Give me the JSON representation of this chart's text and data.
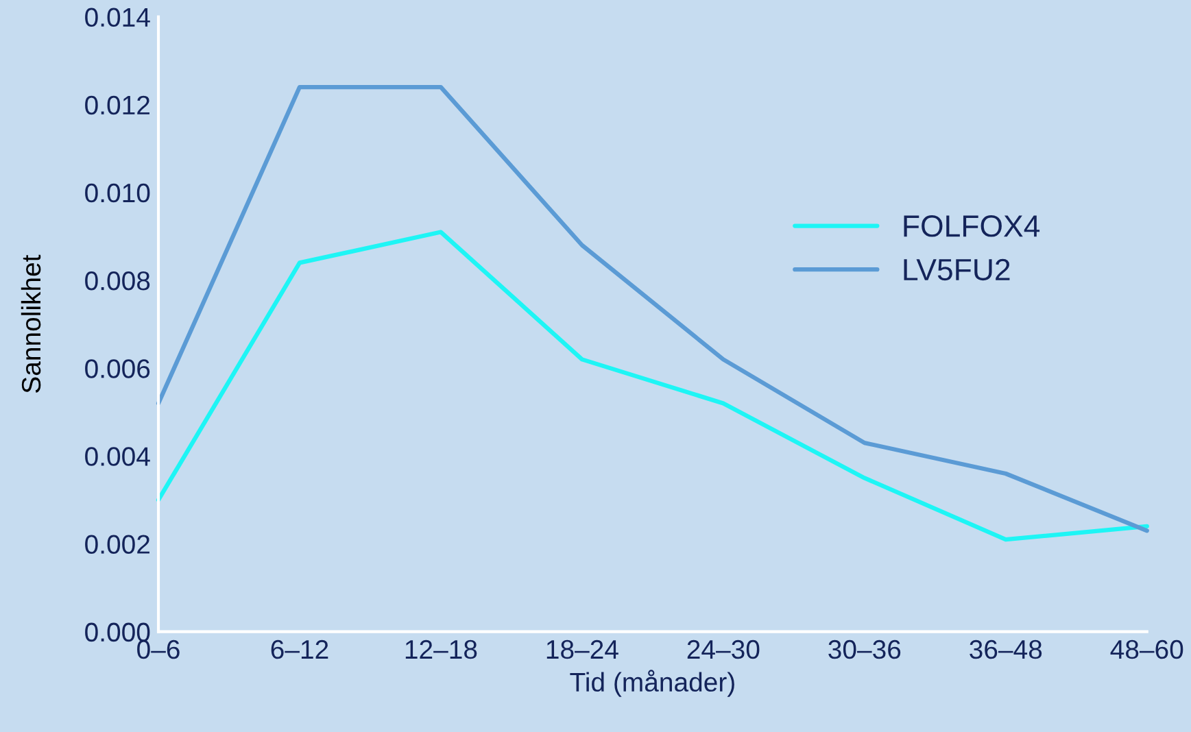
{
  "chart_data": {
    "type": "line",
    "xlabel": "Tid (månader)",
    "ylabel": "Sannolikhet",
    "categories": [
      "0–6",
      "6–12",
      "12–18",
      "18–24",
      "24–30",
      "30–36",
      "36–48",
      "48–60"
    ],
    "series": [
      {
        "name": "FOLFOX4",
        "color": "#1ef5f5",
        "values": [
          0.003,
          0.0084,
          0.0091,
          0.0062,
          0.0052,
          0.0035,
          0.0021,
          0.0024
        ]
      },
      {
        "name": "LV5FU2",
        "color": "#5b9bd5",
        "values": [
          0.0052,
          0.0124,
          0.0124,
          0.0088,
          0.0062,
          0.0043,
          0.0036,
          0.0023
        ]
      }
    ],
    "ylim": [
      0,
      0.014
    ],
    "yticks": [
      {
        "value": 0,
        "label": "0.000"
      },
      {
        "value": 0.002,
        "label": "0.002"
      },
      {
        "value": 0.004,
        "label": "0.004"
      },
      {
        "value": 0.006,
        "label": "0.006"
      },
      {
        "value": 0.008,
        "label": "0.008"
      },
      {
        "value": 0.01,
        "label": "0.010"
      },
      {
        "value": 0.012,
        "label": "0.012"
      },
      {
        "value": 0.014,
        "label": "0.014"
      }
    ],
    "grid": false,
    "legend": "right",
    "marker": "none",
    "line_style": "solid"
  }
}
